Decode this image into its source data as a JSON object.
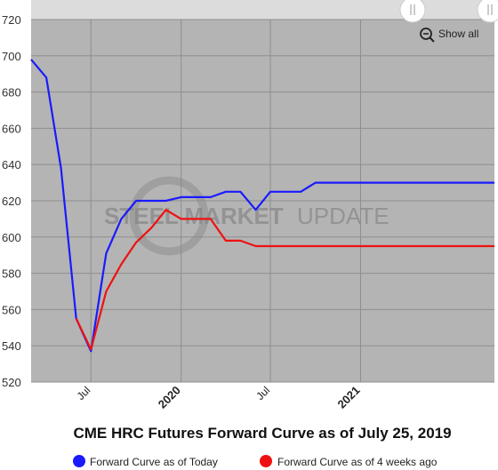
{
  "chart_data": {
    "type": "line",
    "title": "CME HRC Futures Forward Curve as of July 25, 2019",
    "ylim": [
      520,
      720
    ],
    "yticks": [
      520,
      540,
      560,
      580,
      600,
      620,
      640,
      660,
      680,
      700,
      720
    ],
    "xlim": [
      "2019-03-01",
      "2021-10-01"
    ],
    "xticks": [
      {
        "date": "2019-07-01",
        "label": "Jul",
        "bold": false
      },
      {
        "date": "2020-01-01",
        "label": "2020",
        "bold": true
      },
      {
        "date": "2020-07-01",
        "label": "Jul",
        "bold": false
      },
      {
        "date": "2021-01-01",
        "label": "2021",
        "bold": true
      }
    ],
    "grid": true,
    "legend_position": "bottom",
    "series": [
      {
        "name": "Forward Curve as of Today",
        "color": "#1a1aff",
        "points": [
          [
            "2019-03-01",
            698
          ],
          [
            "2019-04-01",
            688
          ],
          [
            "2019-05-01",
            638
          ],
          [
            "2019-06-01",
            555
          ],
          [
            "2019-07-01",
            537
          ],
          [
            "2019-08-01",
            591
          ],
          [
            "2019-09-01",
            610
          ],
          [
            "2019-10-01",
            620
          ],
          [
            "2019-11-01",
            620
          ],
          [
            "2019-12-01",
            620
          ],
          [
            "2020-01-01",
            622
          ],
          [
            "2020-02-01",
            622
          ],
          [
            "2020-03-01",
            622
          ],
          [
            "2020-04-01",
            625
          ],
          [
            "2020-05-01",
            625
          ],
          [
            "2020-06-01",
            615
          ],
          [
            "2020-07-01",
            625
          ],
          [
            "2020-08-01",
            625
          ],
          [
            "2020-09-01",
            625
          ],
          [
            "2020-10-01",
            630
          ],
          [
            "2020-11-01",
            630
          ],
          [
            "2020-12-01",
            630
          ],
          [
            "2021-01-01",
            630
          ],
          [
            "2021-02-01",
            630
          ],
          [
            "2021-03-01",
            630
          ],
          [
            "2021-04-01",
            630
          ],
          [
            "2021-05-01",
            630
          ],
          [
            "2021-06-01",
            630
          ],
          [
            "2021-07-01",
            630
          ],
          [
            "2021-08-01",
            630
          ],
          [
            "2021-09-01",
            630
          ],
          [
            "2021-10-01",
            630
          ]
        ]
      },
      {
        "name": "Forward Curve as of 4 weeks ago",
        "color": "#ee1111",
        "points": [
          [
            "2019-06-01",
            555
          ],
          [
            "2019-07-01",
            538
          ],
          [
            "2019-08-01",
            570
          ],
          [
            "2019-09-01",
            585
          ],
          [
            "2019-10-01",
            597
          ],
          [
            "2019-11-01",
            605
          ],
          [
            "2019-12-01",
            615
          ],
          [
            "2020-01-01",
            610
          ],
          [
            "2020-02-01",
            610
          ],
          [
            "2020-03-01",
            610
          ],
          [
            "2020-04-01",
            598
          ],
          [
            "2020-05-01",
            598
          ],
          [
            "2020-06-01",
            595
          ],
          [
            "2020-07-01",
            595
          ],
          [
            "2020-08-01",
            595
          ],
          [
            "2020-09-01",
            595
          ],
          [
            "2020-10-01",
            595
          ],
          [
            "2020-11-01",
            595
          ],
          [
            "2020-12-01",
            595
          ],
          [
            "2021-01-01",
            595
          ],
          [
            "2021-02-01",
            595
          ],
          [
            "2021-03-01",
            595
          ],
          [
            "2021-04-01",
            595
          ],
          [
            "2021-05-01",
            595
          ],
          [
            "2021-06-01",
            595
          ],
          [
            "2021-07-01",
            595
          ],
          [
            "2021-08-01",
            595
          ],
          [
            "2021-09-01",
            595
          ],
          [
            "2021-10-01",
            595
          ]
        ]
      }
    ]
  },
  "watermark": {
    "brand_strong": "STEEL MARKET",
    "brand_light": "UPDATE"
  },
  "controls": {
    "show_all": "Show all"
  },
  "colors": {
    "plot_bg": "#b4b4b4",
    "navigator_bg": "#dcdcdc",
    "grid": "#8e8e8e"
  }
}
